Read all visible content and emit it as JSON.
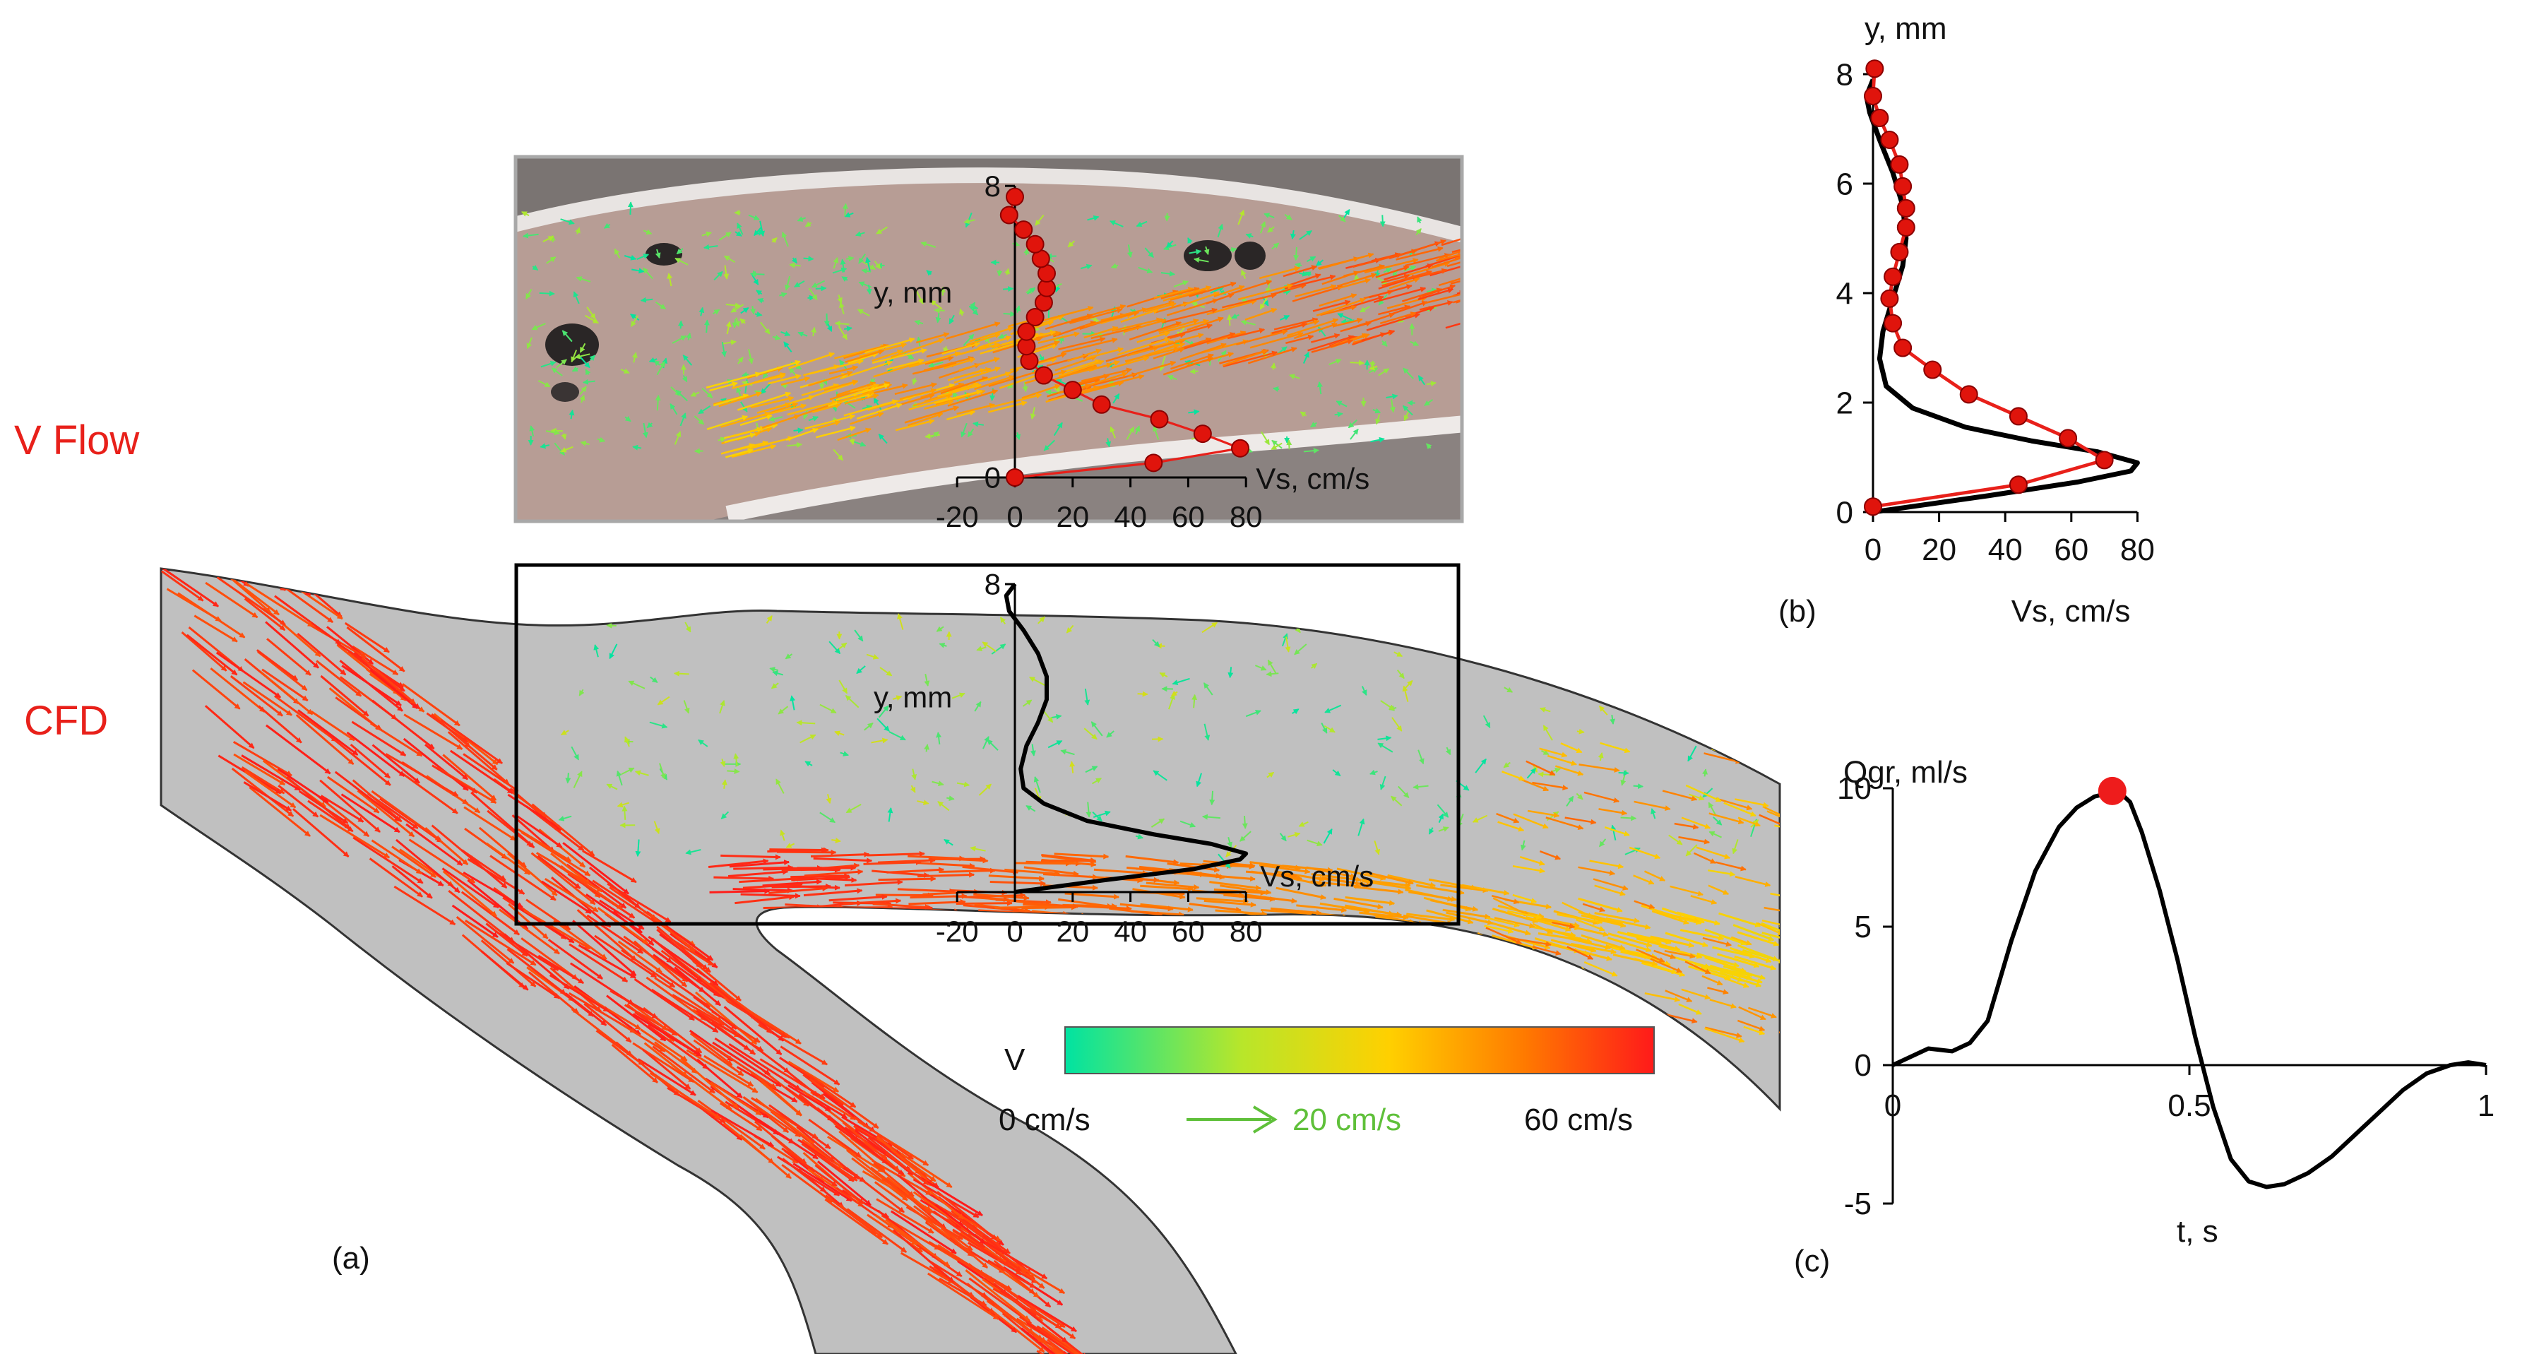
{
  "labels": {
    "vflow": "V Flow",
    "cfd": "CFD",
    "panel_a": "(a)",
    "panel_b": "(b)",
    "panel_c": "(c)"
  },
  "colorbar": {
    "title": "V",
    "min_label": "0 cm/s",
    "ref_label": "20 cm/s",
    "max_label": "60 cm/s",
    "range_cm_s": [
      0,
      60
    ],
    "gradient": [
      "#00e3a2",
      "#b8e62a",
      "#ffd000",
      "#ff7a00",
      "#ff1a1a"
    ]
  },
  "colors": {
    "measured": "#e8201a",
    "marker_fill": "#e0140c",
    "marker_edge": "#8a0000",
    "cfd": "#000000",
    "channel": "#c0c0c0",
    "arrow_ref": "#5fc03a",
    "highlight_point": "#ee1c1c"
  },
  "chart_data": [
    {
      "id": "vflow-inset",
      "type": "line",
      "title": "",
      "xlabel": "Vs, cm/s",
      "ylabel": "y, mm",
      "xlim": [
        -20,
        80
      ],
      "ylim": [
        0,
        8
      ],
      "xticks": [
        "-20",
        "0",
        "20",
        "40",
        "60",
        "80"
      ],
      "yticks": [
        "0",
        "8"
      ],
      "series": [
        {
          "name": "V Flow",
          "style": "points+line",
          "x": [
            0,
            48,
            78,
            65,
            50,
            30,
            20,
            10,
            5,
            4,
            4,
            7,
            10,
            11,
            11,
            9,
            7,
            3,
            -2,
            0
          ],
          "y": [
            0,
            0.4,
            0.8,
            1.2,
            1.6,
            2.0,
            2.4,
            2.8,
            3.2,
            3.6,
            4.0,
            4.4,
            4.8,
            5.2,
            5.6,
            6.0,
            6.4,
            6.8,
            7.2,
            7.7
          ]
        }
      ]
    },
    {
      "id": "cfd-inset",
      "type": "line",
      "title": "",
      "xlabel": "Vs, cm/s",
      "ylabel": "y, mm",
      "xlim": [
        -20,
        80
      ],
      "ylim": [
        0,
        8
      ],
      "xticks": [
        "-20",
        "0",
        "20",
        "40",
        "60",
        "80"
      ],
      "yticks": [
        "8"
      ],
      "series": [
        {
          "name": "CFD",
          "style": "line",
          "x": [
            0,
            30,
            62,
            78,
            80,
            68,
            48,
            25,
            10,
            3,
            2,
            4,
            8,
            11,
            11,
            8,
            3,
            -2,
            -3,
            0
          ],
          "y": [
            0,
            0.3,
            0.6,
            0.85,
            1.0,
            1.25,
            1.5,
            1.85,
            2.3,
            2.7,
            3.2,
            3.8,
            4.4,
            5.0,
            5.6,
            6.2,
            6.8,
            7.3,
            7.7,
            8.0
          ]
        }
      ]
    },
    {
      "id": "panel-b",
      "type": "line",
      "title": "",
      "xlabel": "Vs, cm/s",
      "ylabel": "y, mm",
      "xlim": [
        0,
        80
      ],
      "ylim": [
        0,
        8.2
      ],
      "xticks": [
        "0",
        "20",
        "40",
        "60",
        "80"
      ],
      "yticks": [
        "0",
        "2",
        "4",
        "6",
        "8"
      ],
      "series": [
        {
          "name": "V Flow",
          "style": "points+line",
          "x": [
            0,
            44,
            70,
            59,
            44,
            29,
            18,
            9,
            6,
            5,
            6,
            8,
            10,
            10,
            9,
            8,
            5,
            2,
            0,
            0.5
          ],
          "y": [
            0.1,
            0.5,
            0.95,
            1.35,
            1.75,
            2.15,
            2.6,
            3.0,
            3.45,
            3.9,
            4.3,
            4.75,
            5.2,
            5.55,
            5.95,
            6.35,
            6.8,
            7.2,
            7.6,
            8.1
          ]
        },
        {
          "name": "CFD",
          "style": "line",
          "x": [
            0,
            35,
            62,
            78,
            80,
            68,
            48,
            28,
            12,
            4,
            2,
            3,
            6,
            9,
            10,
            9,
            6,
            2,
            -1,
            -2,
            0
          ],
          "y": [
            0,
            0.3,
            0.55,
            0.75,
            0.9,
            1.1,
            1.3,
            1.55,
            1.9,
            2.3,
            2.8,
            3.3,
            3.9,
            4.5,
            5.0,
            5.6,
            6.2,
            6.8,
            7.3,
            7.6,
            7.9
          ]
        }
      ]
    },
    {
      "id": "panel-c",
      "type": "line",
      "title": "",
      "xlabel": "t, s",
      "ylabel": "Qgr, ml/s",
      "xlim": [
        0,
        1
      ],
      "ylim": [
        -5,
        10
      ],
      "xticks": [
        "0",
        "0.5",
        "1"
      ],
      "yticks": [
        "10",
        "5",
        "0",
        "-5"
      ],
      "series": [
        {
          "name": "Qgr",
          "x": [
            0,
            0.03,
            0.06,
            0.1,
            0.13,
            0.16,
            0.2,
            0.24,
            0.28,
            0.31,
            0.34,
            0.36,
            0.38,
            0.4,
            0.42,
            0.45,
            0.48,
            0.51,
            0.54,
            0.57,
            0.6,
            0.63,
            0.66,
            0.7,
            0.74,
            0.78,
            0.82,
            0.86,
            0.9,
            0.94,
            0.97,
            1.0
          ],
          "y": [
            0,
            0.3,
            0.6,
            0.5,
            0.8,
            1.6,
            4.5,
            7.0,
            8.6,
            9.3,
            9.7,
            9.8,
            9.9,
            9.5,
            8.4,
            6.3,
            3.8,
            1.0,
            -1.5,
            -3.4,
            -4.2,
            -4.4,
            -4.3,
            -3.9,
            -3.3,
            -2.5,
            -1.7,
            -0.9,
            -0.3,
            0.0,
            0.1,
            0
          ]
        }
      ],
      "highlight": {
        "x": 0.37,
        "y": 9.9
      }
    }
  ]
}
